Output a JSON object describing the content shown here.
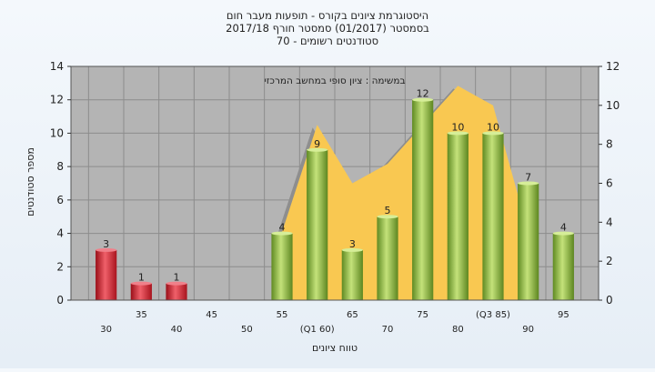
{
  "chart_data": {
    "type": "bar",
    "title_lines": [
      "היסטוגרמת ציונים בקורס - תופעות מעבר חום",
      "בסמסטר (01/2017) סמסטר חורף 2017/18",
      "סטודנטים רשומים - 70"
    ],
    "xlabel": "טווח ציונים",
    "ylabel": "מספר סטודנטים",
    "annotation": "במשימה : ציון סופי במחשב המרכזי",
    "ylim_left": [
      0,
      14
    ],
    "yticks_left": [
      0,
      2,
      4,
      6,
      8,
      10,
      12,
      14
    ],
    "ylim_right": [
      0,
      12
    ],
    "yticks_right": [
      0,
      2,
      4,
      6,
      8,
      10,
      12
    ],
    "grid": true,
    "categories": [
      {
        "label": "30",
        "value": 3,
        "color": "red"
      },
      {
        "label": "35",
        "value": 1,
        "color": "red"
      },
      {
        "label": "40",
        "value": 1,
        "color": "red"
      },
      {
        "label": "45",
        "value": 0,
        "color": "green"
      },
      {
        "label": "50",
        "value": 0,
        "color": "green"
      },
      {
        "label": "55",
        "value": 4,
        "color": "green"
      },
      {
        "label": "(Q1 60)",
        "value": 9,
        "color": "green"
      },
      {
        "label": "65",
        "value": 3,
        "color": "green"
      },
      {
        "label": "70",
        "value": 5,
        "color": "green"
      },
      {
        "label": "75",
        "value": 12,
        "color": "green"
      },
      {
        "label": "80",
        "value": 10,
        "color": "green"
      },
      {
        "label": "(Q3 85)",
        "value": 10,
        "color": "green"
      },
      {
        "label": "90",
        "value": 7,
        "color": "green"
      },
      {
        "label": "95",
        "value": 4,
        "color": "green"
      }
    ],
    "area_series_right_axis": [
      {
        "x": "55",
        "y": 3.5
      },
      {
        "x": "(Q1 60)",
        "y": 9
      },
      {
        "x": "65",
        "y": 6
      },
      {
        "x": "70",
        "y": 7
      },
      {
        "x": "75",
        "y": 9
      },
      {
        "x": "80",
        "y": 11
      },
      {
        "x": "(Q3 85)",
        "y": 10
      },
      {
        "x": "90",
        "y": 3.5
      }
    ],
    "colors": {
      "plot_background": "#b4b4b4",
      "grid": "#8c8c8c",
      "red_bar": "#e0303a",
      "green_bar": "#9cc84a",
      "area_fill": "#f9c851",
      "area_shadow": "#8e8e8e"
    }
  }
}
